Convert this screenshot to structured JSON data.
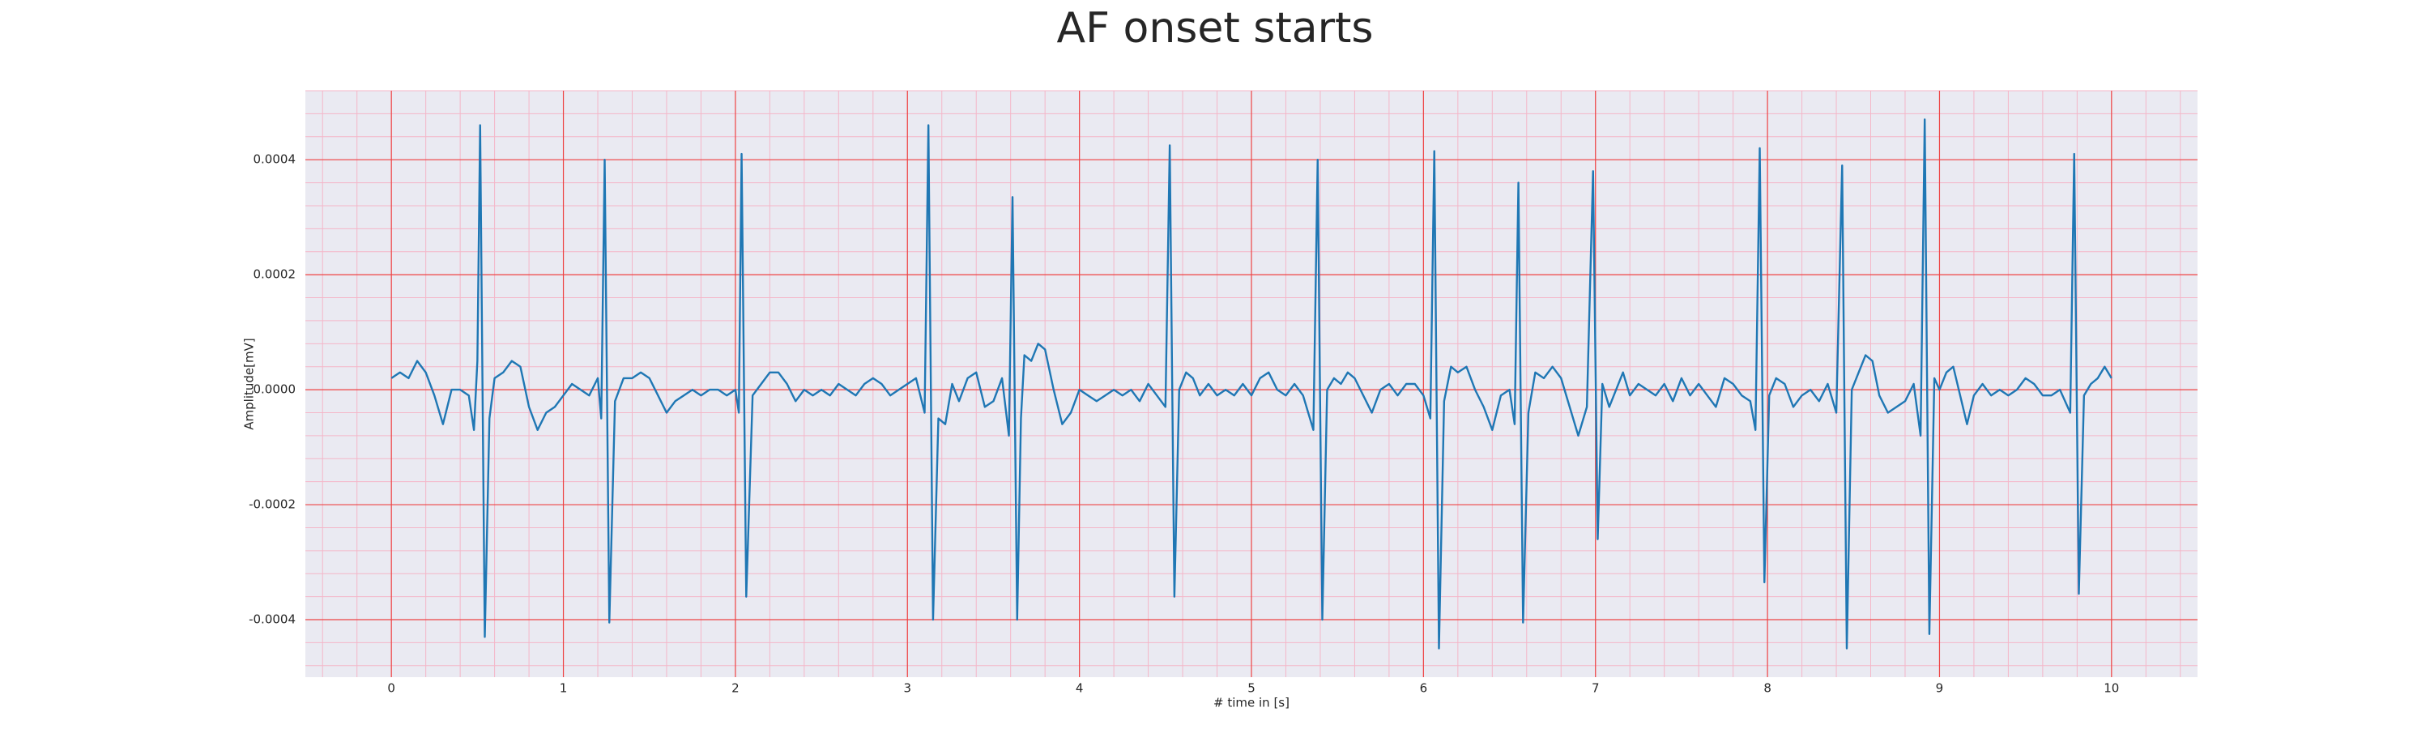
{
  "chart_data": {
    "type": "line",
    "title": "AF onset starts",
    "x_label": "# time in [s]",
    "y_label": "Amplitude[mV]",
    "xlim": [
      -0.5,
      10.5
    ],
    "ylim": [
      -0.0005,
      0.00052
    ],
    "xticks": [
      0,
      1,
      2,
      3,
      4,
      5,
      6,
      7,
      8,
      9,
      10
    ],
    "yticks": [
      -0.0004,
      -0.0002,
      {
        "value": 0,
        "label": "0.0000"
      },
      0.0002,
      0.0004
    ],
    "grid": true,
    "minor_grid": true,
    "series": [
      {
        "color": "#1f77b4",
        "x": [
          0,
          0.05,
          0.1,
          0.15,
          0.2,
          0.25,
          0.3,
          0.35,
          0.4,
          0.45,
          0.48,
          0.5,
          0.516,
          0.543,
          0.57,
          0.6,
          0.65,
          0.7,
          0.75,
          0.8,
          0.85,
          0.9,
          0.95,
          1.0,
          1.05,
          1.1,
          1.15,
          1.2,
          1.22,
          1.24,
          1.267,
          1.3,
          1.35,
          1.4,
          1.45,
          1.5,
          1.55,
          1.6,
          1.65,
          1.7,
          1.75,
          1.8,
          1.85,
          1.9,
          1.95,
          2.0,
          2.02,
          2.036,
          2.063,
          2.1,
          2.15,
          2.2,
          2.25,
          2.3,
          2.35,
          2.4,
          2.45,
          2.5,
          2.55,
          2.6,
          2.65,
          2.7,
          2.75,
          2.8,
          2.85,
          2.9,
          2.95,
          3.0,
          3.05,
          3.1,
          3.122,
          3.149,
          3.18,
          3.22,
          3.26,
          3.3,
          3.35,
          3.4,
          3.45,
          3.5,
          3.55,
          3.59,
          3.611,
          3.638,
          3.66,
          3.68,
          3.72,
          3.76,
          3.8,
          3.85,
          3.9,
          3.95,
          4.0,
          4.05,
          4.1,
          4.15,
          4.2,
          4.25,
          4.3,
          4.35,
          4.4,
          4.45,
          4.5,
          4.525,
          4.552,
          4.58,
          4.62,
          4.66,
          4.7,
          4.75,
          4.8,
          4.85,
          4.9,
          4.95,
          5.0,
          5.05,
          5.1,
          5.15,
          5.2,
          5.25,
          5.3,
          5.36,
          5.385,
          5.412,
          5.44,
          5.48,
          5.52,
          5.56,
          5.6,
          5.65,
          5.7,
          5.75,
          5.8,
          5.85,
          5.9,
          5.95,
          6.0,
          6.04,
          6.063,
          6.09,
          6.12,
          6.16,
          6.2,
          6.25,
          6.3,
          6.35,
          6.4,
          6.45,
          6.5,
          6.53,
          6.552,
          6.579,
          6.61,
          6.65,
          6.7,
          6.75,
          6.8,
          6.85,
          6.9,
          6.95,
          6.986,
          7.013,
          7.04,
          7.08,
          7.12,
          7.16,
          7.2,
          7.25,
          7.3,
          7.35,
          7.4,
          7.45,
          7.5,
          7.55,
          7.6,
          7.65,
          7.7,
          7.75,
          7.8,
          7.85,
          7.9,
          7.93,
          7.955,
          7.982,
          8.01,
          8.05,
          8.1,
          8.15,
          8.2,
          8.25,
          8.3,
          8.35,
          8.4,
          8.434,
          8.461,
          8.49,
          8.53,
          8.57,
          8.61,
          8.65,
          8.7,
          8.75,
          8.8,
          8.85,
          8.89,
          8.914,
          8.941,
          8.97,
          9.0,
          9.04,
          9.08,
          9.12,
          9.16,
          9.2,
          9.25,
          9.3,
          9.35,
          9.4,
          9.45,
          9.5,
          9.55,
          9.6,
          9.65,
          9.7,
          9.76,
          9.783,
          9.81,
          9.84,
          9.88,
          9.92,
          9.96,
          10.0
        ],
        "values": [
          2e-05,
          3e-05,
          2e-05,
          5e-05,
          3e-05,
          -1e-05,
          -6e-05,
          0,
          0,
          -1e-05,
          -7e-05,
          5e-05,
          0.00046,
          -0.00043,
          -5e-05,
          2e-05,
          3e-05,
          5e-05,
          4e-05,
          -3e-05,
          -7e-05,
          -4e-05,
          -3e-05,
          -1e-05,
          1e-05,
          0,
          -1e-05,
          2e-05,
          -5e-05,
          0.0004,
          -0.000405,
          -2e-05,
          2e-05,
          2e-05,
          3e-05,
          2e-05,
          -1e-05,
          -4e-05,
          -2e-05,
          -1e-05,
          0,
          -1e-05,
          0,
          0,
          -1e-05,
          0,
          -4e-05,
          0.00041,
          -0.00036,
          -1e-05,
          1e-05,
          3e-05,
          3e-05,
          1e-05,
          -2e-05,
          0,
          -1e-05,
          0,
          -1e-05,
          1e-05,
          0,
          -1e-05,
          1e-05,
          2e-05,
          1e-05,
          -1e-05,
          0,
          1e-05,
          2e-05,
          -4e-05,
          0.00046,
          -0.0004,
          -5e-05,
          -6e-05,
          1e-05,
          -2e-05,
          2e-05,
          3e-05,
          -3e-05,
          -2e-05,
          2e-05,
          -8e-05,
          0.000335,
          -0.0004,
          -5e-05,
          6e-05,
          5e-05,
          8e-05,
          7e-05,
          0,
          -6e-05,
          -4e-05,
          0,
          -1e-05,
          -2e-05,
          -1e-05,
          0,
          -1e-05,
          0,
          -2e-05,
          1e-05,
          -1e-05,
          -3e-05,
          0.000425,
          -0.00036,
          0,
          3e-05,
          2e-05,
          -1e-05,
          1e-05,
          -1e-05,
          0,
          -1e-05,
          1e-05,
          -1e-05,
          2e-05,
          3e-05,
          0,
          -1e-05,
          1e-05,
          -1e-05,
          -7e-05,
          0.0004,
          -0.0004,
          0,
          2e-05,
          1e-05,
          3e-05,
          2e-05,
          -1e-05,
          -4e-05,
          0,
          1e-05,
          -1e-05,
          1e-05,
          1e-05,
          -1e-05,
          -5e-05,
          0.000415,
          -0.00045,
          -2e-05,
          4e-05,
          3e-05,
          4e-05,
          0,
          -3e-05,
          -7e-05,
          -1e-05,
          0,
          -6e-05,
          0.00036,
          -0.000405,
          -4e-05,
          3e-05,
          2e-05,
          4e-05,
          2e-05,
          -3e-05,
          -8e-05,
          -3e-05,
          0.00038,
          -0.00026,
          1e-05,
          -3e-05,
          0,
          3e-05,
          -1e-05,
          1e-05,
          0,
          -1e-05,
          1e-05,
          -2e-05,
          2e-05,
          -1e-05,
          1e-05,
          -1e-05,
          -3e-05,
          2e-05,
          1e-05,
          -1e-05,
          -2e-05,
          -7e-05,
          0.00042,
          -0.000335,
          -1e-05,
          2e-05,
          1e-05,
          -3e-05,
          -1e-05,
          0,
          -2e-05,
          1e-05,
          -4e-05,
          0.00039,
          -0.00045,
          0,
          3e-05,
          6e-05,
          5e-05,
          -1e-05,
          -4e-05,
          -3e-05,
          -2e-05,
          1e-05,
          -8e-05,
          0.00047,
          -0.000425,
          2e-05,
          0,
          3e-05,
          4e-05,
          -1e-05,
          -6e-05,
          -1e-05,
          1e-05,
          -1e-05,
          0,
          -1e-05,
          0,
          2e-05,
          1e-05,
          -1e-05,
          -1e-05,
          0,
          -4e-05,
          0.00041,
          -0.000355,
          -1e-05,
          1e-05,
          2e-05,
          4e-05,
          2e-05
        ]
      }
    ]
  }
}
